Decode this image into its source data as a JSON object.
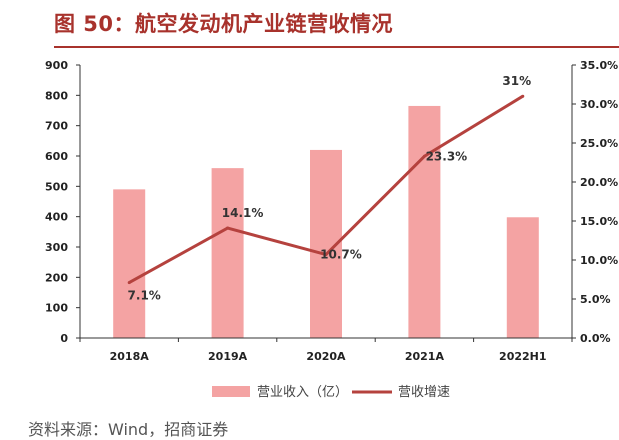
{
  "title": "图 50：航空发动机产业链营收情况",
  "source": "资料来源：Wind，招商证券",
  "colors": {
    "title": "#a8322c",
    "bar": "#f4a3a3",
    "line": "#b5423e",
    "axis": "#333333"
  },
  "chart_data": {
    "type": "bar",
    "categories": [
      "2018A",
      "2019A",
      "2020A",
      "2021A",
      "2022H1"
    ],
    "series": [
      {
        "name": "营业收入（亿）",
        "type": "bar",
        "axis": "left",
        "values": [
          490,
          560,
          620,
          765,
          398
        ]
      },
      {
        "name": "营收增速",
        "type": "line",
        "axis": "right",
        "values": [
          7.1,
          14.1,
          10.7,
          23.3,
          31
        ]
      }
    ],
    "data_labels": [
      "7.1%",
      "14.1%",
      "10.7%",
      "23.3%",
      "31%"
    ],
    "y_left": {
      "min": 0,
      "max": 900,
      "ticks": [
        "0",
        "100",
        "200",
        "300",
        "400",
        "500",
        "600",
        "700",
        "800",
        "900"
      ]
    },
    "y_right": {
      "min": 0,
      "max": 35,
      "ticks": [
        "0.0%",
        "5.0%",
        "10.0%",
        "15.0%",
        "20.0%",
        "25.0%",
        "30.0%",
        "35.0%"
      ]
    },
    "legend": {
      "position": "bottom",
      "entries": [
        "营业收入（亿）",
        "营收增速"
      ]
    },
    "grid": false
  }
}
